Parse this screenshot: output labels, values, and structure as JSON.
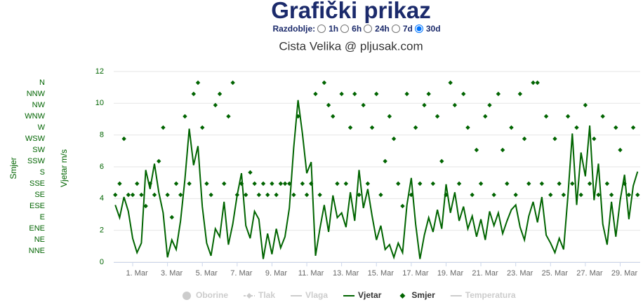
{
  "header": {
    "title": "Grafički prikaz",
    "period_label": "Razdoblje:",
    "periods": [
      "1h",
      "6h",
      "24h",
      "7d",
      "30d"
    ],
    "selected_period": "30d"
  },
  "chart_data": {
    "type": "line",
    "title": "Cista Velika @ pljusak.com",
    "ylabel": "Vjetar m/s",
    "y2label": "Smjer",
    "grid": true,
    "x": [
      0,
      0.25,
      0.5,
      0.75,
      1,
      1.25,
      1.5,
      1.75,
      2,
      2.25,
      2.5,
      2.75,
      3,
      3.25,
      3.5,
      3.75,
      4,
      4.25,
      4.5,
      4.75,
      5,
      5.25,
      5.5,
      5.75,
      6,
      6.25,
      6.5,
      6.75,
      7,
      7.25,
      7.5,
      7.75,
      8,
      8.25,
      8.5,
      8.75,
      9,
      9.25,
      9.5,
      9.75,
      10,
      10.25,
      10.5,
      10.75,
      11,
      11.25,
      11.5,
      11.75,
      12,
      12.25,
      12.5,
      12.75,
      13,
      13.25,
      13.5,
      13.75,
      14,
      14.25,
      14.5,
      14.75,
      15,
      15.25,
      15.5,
      15.75,
      16,
      16.25,
      16.5,
      16.75,
      17,
      17.25,
      17.5,
      17.75,
      18,
      18.25,
      18.5,
      18.75,
      19,
      19.25,
      19.5,
      19.75,
      20,
      20.25,
      20.5,
      20.75,
      21,
      21.25,
      21.5,
      21.75,
      22,
      22.25,
      22.5,
      22.75,
      23,
      23.25,
      23.5,
      23.75,
      24,
      24.25,
      24.5,
      24.75,
      25,
      25.25,
      25.5,
      25.75,
      26,
      26.25,
      26.5,
      26.75,
      27,
      27.25,
      27.5,
      27.75,
      28,
      28.25,
      28.5,
      28.75,
      29,
      29.25,
      29.5,
      29.75,
      30
    ],
    "xlim": [
      -0.09,
      30.15
    ],
    "xticks": [
      {
        "value": 1,
        "label": "1. Mar"
      },
      {
        "value": 3,
        "label": "3. Mar"
      },
      {
        "value": 5,
        "label": "5. Mar"
      },
      {
        "value": 7,
        "label": "7. Mar"
      },
      {
        "value": 9,
        "label": "9. Mar"
      },
      {
        "value": 11,
        "label": "11. Mar"
      },
      {
        "value": 13,
        "label": "13. Mar"
      },
      {
        "value": 15,
        "label": "15. Mar"
      },
      {
        "value": 17,
        "label": "17. Mar"
      },
      {
        "value": 19,
        "label": "19. Mar"
      },
      {
        "value": 21,
        "label": "21. Mar"
      },
      {
        "value": 23,
        "label": "23. Mar"
      },
      {
        "value": 25,
        "label": "25. Mar"
      },
      {
        "value": 27,
        "label": "27. Mar"
      },
      {
        "value": 29,
        "label": "29. Mar"
      }
    ],
    "ylim": [
      0,
      12
    ],
    "yticks": [
      0,
      2,
      4,
      6,
      8,
      10,
      12
    ],
    "y2lim": [
      0,
      17
    ],
    "y2ticks": [
      {
        "value": 1,
        "label": "NNE"
      },
      {
        "value": 2,
        "label": "NE"
      },
      {
        "value": 3,
        "label": "ENE"
      },
      {
        "value": 4,
        "label": "E"
      },
      {
        "value": 5,
        "label": "ESE"
      },
      {
        "value": 6,
        "label": "SE"
      },
      {
        "value": 7,
        "label": "SSE"
      },
      {
        "value": 8,
        "label": "S"
      },
      {
        "value": 9,
        "label": "SSW"
      },
      {
        "value": 10,
        "label": "SW"
      },
      {
        "value": 11,
        "label": "WSW"
      },
      {
        "value": 12,
        "label": "W"
      },
      {
        "value": 13,
        "label": "WNW"
      },
      {
        "value": 14,
        "label": "NW"
      },
      {
        "value": 15,
        "label": "NNW"
      },
      {
        "value": 16,
        "label": "N"
      }
    ],
    "series": [
      {
        "name": "Oborine",
        "color": "#cccccc",
        "symbol": "circle",
        "visible": false
      },
      {
        "name": "Tlak",
        "color": "#cccccc",
        "symbol": "dash-diamond",
        "visible": false
      },
      {
        "name": "Vlaga",
        "color": "#cccccc",
        "symbol": "line",
        "visible": false
      },
      {
        "name": "Vjetar",
        "color": "#006400",
        "symbol": "line",
        "visible": true,
        "values": [
          3.6,
          2.8,
          4.1,
          3.2,
          1.5,
          0.6,
          1.2,
          5.8,
          4.6,
          6.2,
          4.4,
          3.1,
          0.3,
          1.4,
          0.8,
          2.6,
          5.2,
          8.4,
          6.1,
          7.3,
          3.5,
          1.2,
          0.4,
          2.1,
          1.6,
          3.8,
          1.1,
          2.4,
          4.2,
          5.6,
          2.3,
          1.5,
          3.2,
          2.7,
          0.2,
          1.8,
          0.5,
          2.1,
          0.9,
          1.6,
          3.4,
          7.2,
          10.2,
          8.1,
          5.6,
          6.3,
          0.4,
          2.1,
          3.6,
          1.9,
          4.2,
          2.8,
          3.1,
          2.2,
          4.4,
          2.6,
          5.8,
          3.4,
          4.6,
          2.9,
          1.4,
          2.3,
          0.8,
          1.1,
          0.3,
          1.2,
          0.6,
          3.6,
          5.3,
          2.4,
          0.2,
          1.7,
          2.8,
          1.9,
          3.3,
          2.1,
          4.9,
          3.1,
          4.4,
          2.6,
          3.5,
          2.1,
          2.9,
          1.6,
          2.7,
          1.4,
          3.2,
          2.3,
          3.1,
          1.8,
          2.6,
          3.3,
          3.6,
          2.2,
          1.4,
          2.9,
          3.8,
          2.5,
          4.1,
          1.7,
          1.2,
          0.6,
          1.5,
          0.8,
          4.2,
          8.1,
          3.6,
          6.9,
          5.4,
          8.6,
          3.9,
          6.2,
          2.4,
          1.1,
          3.8,
          1.6,
          3.9,
          5.5,
          2.7,
          4.8,
          5.7
        ]
      },
      {
        "name": "Smjer",
        "color": "#006400",
        "symbol": "diamond",
        "visible": true,
        "axis": "y2",
        "values": [
          6,
          7,
          11,
          6,
          6,
          7,
          6,
          5,
          7,
          6,
          9,
          12,
          6,
          4,
          7,
          6,
          13,
          7,
          15,
          16,
          12,
          7,
          6,
          14,
          15,
          7,
          13,
          16,
          6,
          7,
          6,
          8,
          7,
          6,
          7,
          6,
          7,
          6,
          7,
          7,
          7,
          6,
          13,
          7,
          6,
          7,
          15,
          6,
          16,
          14,
          13,
          7,
          15,
          7,
          12,
          15,
          6,
          14,
          7,
          12,
          15,
          6,
          9,
          13,
          11,
          7,
          5,
          15,
          6,
          12,
          7,
          14,
          15,
          7,
          13,
          9,
          6,
          16,
          14,
          7,
          15,
          12,
          6,
          10,
          7,
          13,
          14,
          6,
          15,
          10,
          7,
          12,
          6,
          15,
          11,
          7,
          16,
          16,
          7,
          13,
          6,
          11,
          7,
          6,
          13,
          7,
          12,
          6,
          14,
          7,
          11,
          6,
          13,
          7,
          6,
          12,
          10,
          7,
          6,
          12,
          6
        ]
      },
      {
        "name": "Temperatura",
        "color": "#cccccc",
        "symbol": "line",
        "visible": false
      }
    ]
  }
}
